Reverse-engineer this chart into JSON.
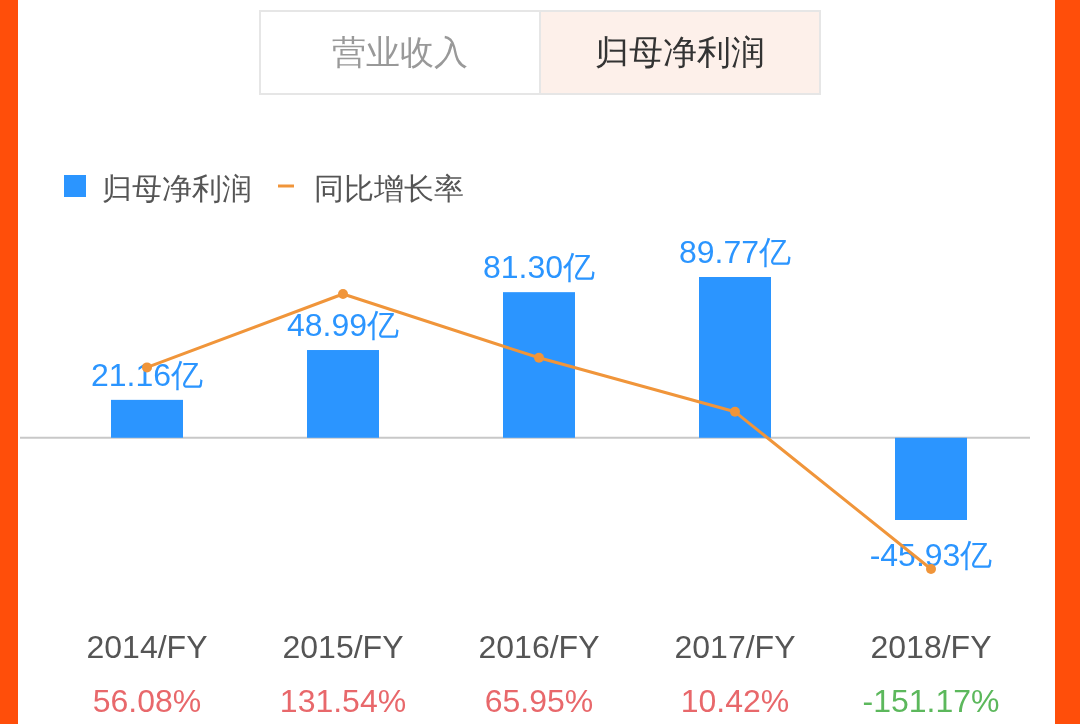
{
  "chart_data": {
    "type": "bar",
    "categories": [
      "2014/FY",
      "2015/FY",
      "2016/FY",
      "2017/FY",
      "2018/FY"
    ],
    "series": [
      {
        "name": "归母净利润",
        "color": "#2b95ff",
        "values": [
          21.16,
          48.99,
          81.3,
          89.77,
          -45.93
        ],
        "value_labels": [
          "21.16亿",
          "48.99亿",
          "81.30亿",
          "89.77亿",
          "-45.93亿"
        ]
      },
      {
        "name": "同比增长率",
        "type": "line",
        "axis": "y2",
        "color": "#f0953a",
        "marker": "circle",
        "line_style": "solid",
        "values": [
          56.08,
          131.54,
          65.95,
          10.42,
          -151.17
        ],
        "value_labels": [
          "56.08%",
          "131.54%",
          "65.95%",
          "10.42%",
          "-151.17%"
        ]
      }
    ],
    "legend": "top left",
    "grid": false,
    "annotations": [
      "营业收入",
      "归母净利润"
    ]
  }
}
